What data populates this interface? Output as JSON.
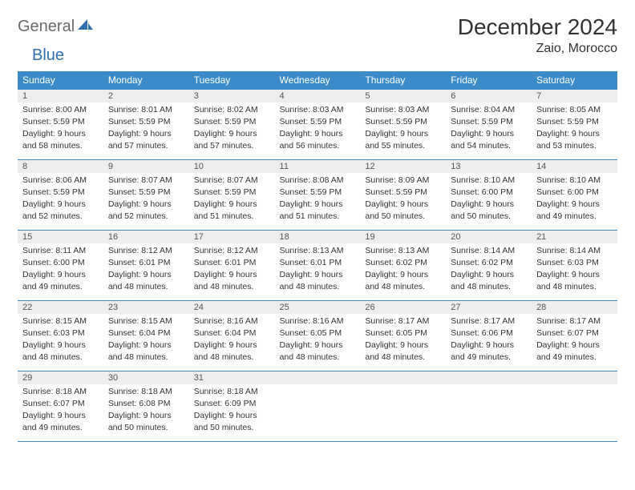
{
  "brand": {
    "part1": "General",
    "part2": "Blue"
  },
  "title": "December 2024",
  "location": "Zaio, Morocco",
  "colors": {
    "header_bg": "#3b8bc9",
    "header_text": "#ffffff",
    "daynum_bg": "#eceeef",
    "border": "#3b8bc9",
    "brand_gray": "#6a6a6a",
    "brand_blue": "#2f6fb0"
  },
  "weekdays": [
    "Sunday",
    "Monday",
    "Tuesday",
    "Wednesday",
    "Thursday",
    "Friday",
    "Saturday"
  ],
  "days": [
    {
      "n": 1,
      "sunrise": "8:00 AM",
      "sunset": "5:59 PM",
      "daylight": "9 hours and 58 minutes."
    },
    {
      "n": 2,
      "sunrise": "8:01 AM",
      "sunset": "5:59 PM",
      "daylight": "9 hours and 57 minutes."
    },
    {
      "n": 3,
      "sunrise": "8:02 AM",
      "sunset": "5:59 PM",
      "daylight": "9 hours and 57 minutes."
    },
    {
      "n": 4,
      "sunrise": "8:03 AM",
      "sunset": "5:59 PM",
      "daylight": "9 hours and 56 minutes."
    },
    {
      "n": 5,
      "sunrise": "8:03 AM",
      "sunset": "5:59 PM",
      "daylight": "9 hours and 55 minutes."
    },
    {
      "n": 6,
      "sunrise": "8:04 AM",
      "sunset": "5:59 PM",
      "daylight": "9 hours and 54 minutes."
    },
    {
      "n": 7,
      "sunrise": "8:05 AM",
      "sunset": "5:59 PM",
      "daylight": "9 hours and 53 minutes."
    },
    {
      "n": 8,
      "sunrise": "8:06 AM",
      "sunset": "5:59 PM",
      "daylight": "9 hours and 52 minutes."
    },
    {
      "n": 9,
      "sunrise": "8:07 AM",
      "sunset": "5:59 PM",
      "daylight": "9 hours and 52 minutes."
    },
    {
      "n": 10,
      "sunrise": "8:07 AM",
      "sunset": "5:59 PM",
      "daylight": "9 hours and 51 minutes."
    },
    {
      "n": 11,
      "sunrise": "8:08 AM",
      "sunset": "5:59 PM",
      "daylight": "9 hours and 51 minutes."
    },
    {
      "n": 12,
      "sunrise": "8:09 AM",
      "sunset": "5:59 PM",
      "daylight": "9 hours and 50 minutes."
    },
    {
      "n": 13,
      "sunrise": "8:10 AM",
      "sunset": "6:00 PM",
      "daylight": "9 hours and 50 minutes."
    },
    {
      "n": 14,
      "sunrise": "8:10 AM",
      "sunset": "6:00 PM",
      "daylight": "9 hours and 49 minutes."
    },
    {
      "n": 15,
      "sunrise": "8:11 AM",
      "sunset": "6:00 PM",
      "daylight": "9 hours and 49 minutes."
    },
    {
      "n": 16,
      "sunrise": "8:12 AM",
      "sunset": "6:01 PM",
      "daylight": "9 hours and 48 minutes."
    },
    {
      "n": 17,
      "sunrise": "8:12 AM",
      "sunset": "6:01 PM",
      "daylight": "9 hours and 48 minutes."
    },
    {
      "n": 18,
      "sunrise": "8:13 AM",
      "sunset": "6:01 PM",
      "daylight": "9 hours and 48 minutes."
    },
    {
      "n": 19,
      "sunrise": "8:13 AM",
      "sunset": "6:02 PM",
      "daylight": "9 hours and 48 minutes."
    },
    {
      "n": 20,
      "sunrise": "8:14 AM",
      "sunset": "6:02 PM",
      "daylight": "9 hours and 48 minutes."
    },
    {
      "n": 21,
      "sunrise": "8:14 AM",
      "sunset": "6:03 PM",
      "daylight": "9 hours and 48 minutes."
    },
    {
      "n": 22,
      "sunrise": "8:15 AM",
      "sunset": "6:03 PM",
      "daylight": "9 hours and 48 minutes."
    },
    {
      "n": 23,
      "sunrise": "8:15 AM",
      "sunset": "6:04 PM",
      "daylight": "9 hours and 48 minutes."
    },
    {
      "n": 24,
      "sunrise": "8:16 AM",
      "sunset": "6:04 PM",
      "daylight": "9 hours and 48 minutes."
    },
    {
      "n": 25,
      "sunrise": "8:16 AM",
      "sunset": "6:05 PM",
      "daylight": "9 hours and 48 minutes."
    },
    {
      "n": 26,
      "sunrise": "8:17 AM",
      "sunset": "6:05 PM",
      "daylight": "9 hours and 48 minutes."
    },
    {
      "n": 27,
      "sunrise": "8:17 AM",
      "sunset": "6:06 PM",
      "daylight": "9 hours and 49 minutes."
    },
    {
      "n": 28,
      "sunrise": "8:17 AM",
      "sunset": "6:07 PM",
      "daylight": "9 hours and 49 minutes."
    },
    {
      "n": 29,
      "sunrise": "8:18 AM",
      "sunset": "6:07 PM",
      "daylight": "9 hours and 49 minutes."
    },
    {
      "n": 30,
      "sunrise": "8:18 AM",
      "sunset": "6:08 PM",
      "daylight": "9 hours and 50 minutes."
    },
    {
      "n": 31,
      "sunrise": "8:18 AM",
      "sunset": "6:09 PM",
      "daylight": "9 hours and 50 minutes."
    }
  ],
  "labels": {
    "sunrise": "Sunrise:",
    "sunset": "Sunset:",
    "daylight": "Daylight:"
  }
}
